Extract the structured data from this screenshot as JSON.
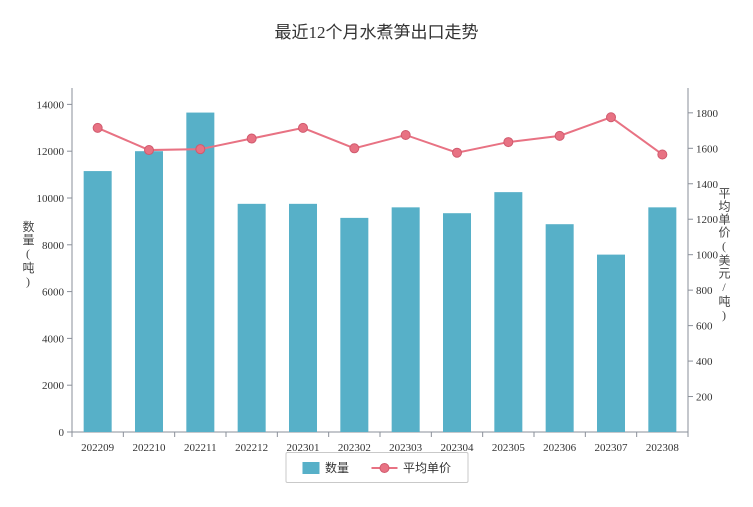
{
  "chart_data": {
    "type": "bar",
    "combo": "bar+line",
    "title": "最近12个月水煮笋出口走势",
    "categories": [
      "202209",
      "202210",
      "202211",
      "202212",
      "202301",
      "202302",
      "202303",
      "202304",
      "202305",
      "202306",
      "202307",
      "202308"
    ],
    "series": [
      {
        "name": "数量",
        "type": "bar",
        "axis": "left",
        "color": "#57b0c8",
        "values": [
          11150,
          12000,
          13650,
          9750,
          9750,
          9150,
          9600,
          9350,
          10250,
          8880,
          7580,
          9600
        ]
      },
      {
        "name": "平均单价",
        "type": "line",
        "axis": "right",
        "color": "#e87283",
        "marker_border": "#d05a6e",
        "values": [
          1715,
          1590,
          1595,
          1655,
          1715,
          1600,
          1675,
          1575,
          1635,
          1670,
          1775,
          1565
        ]
      }
    ],
    "left_axis": {
      "title": "数量(吨)",
      "min": 0,
      "max": 14000,
      "tick_step": 2000,
      "ticks": [
        0,
        2000,
        4000,
        6000,
        8000,
        10000,
        12000,
        14000
      ]
    },
    "right_axis": {
      "title": "平均单价(美元/吨)",
      "min": 0,
      "max": 1800,
      "tick_step": 200,
      "ticks": [
        200,
        400,
        600,
        800,
        1000,
        1200,
        1400,
        1600,
        1800
      ]
    },
    "legend": {
      "position": "bottom",
      "items": [
        "数量",
        "平均单价"
      ]
    },
    "grid": false,
    "colors": {
      "bar": "#57b0c8",
      "line": "#e87283",
      "axis": "#8a8f99",
      "text": "#333333",
      "background": "#ffffff"
    }
  }
}
